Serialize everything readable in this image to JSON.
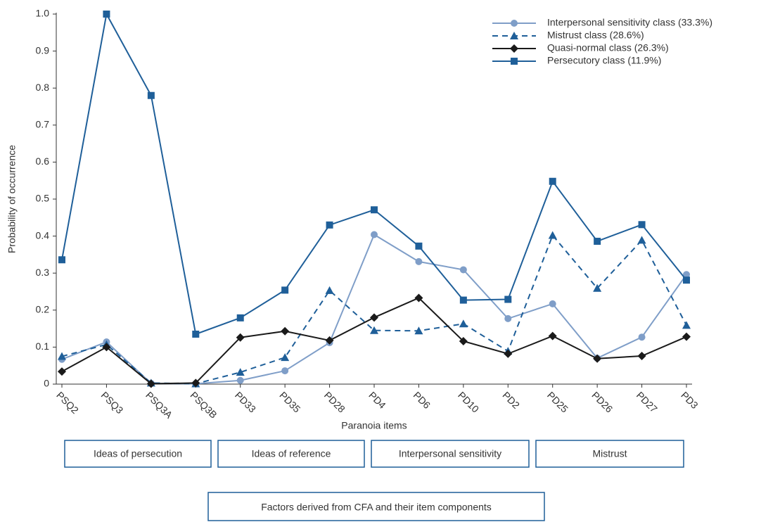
{
  "chart_data": {
    "type": "line",
    "y_label": "Probability of occurrence",
    "x_label": "Paranoia items",
    "categories": [
      "PSQ2",
      "PSQ3",
      "PSQ3A",
      "PSQ3B",
      "PD33",
      "PD35",
      "PD28",
      "PD4",
      "PD6",
      "PD10",
      "PD2",
      "PD25",
      "PD26",
      "PD27",
      "PD3"
    ],
    "ylim": [
      0,
      1
    ],
    "yticks": [
      0,
      0.1,
      0.2,
      0.3,
      0.4,
      0.5,
      0.6,
      0.7,
      0.8,
      0.9,
      {
        "value": 1,
        "label": "1.0"
      }
    ],
    "legend": "upper right",
    "series": [
      {
        "name": "Interpersonal sensitivity class (33.3%)",
        "color": "#7f9ec8",
        "marker": "circle",
        "dashed": false,
        "values": [
          0.067,
          0.114,
          0.002,
          0.001,
          0.01,
          0.036,
          0.112,
          0.404,
          0.331,
          0.309,
          0.177,
          0.217,
          0.07,
          0.127,
          0.296
        ]
      },
      {
        "name": "Mistrust class (28.6%)",
        "color": "#1f5f99",
        "marker": "triangle",
        "dashed": true,
        "values": [
          0.075,
          0.107,
          0.003,
          0.001,
          0.032,
          0.072,
          0.253,
          0.145,
          0.144,
          0.163,
          0.089,
          0.402,
          0.259,
          0.389,
          0.159
        ]
      },
      {
        "name": "Quasi-normal class (26.3%)",
        "color": "#1a1a1a",
        "marker": "diamond",
        "dashed": false,
        "values": [
          0.034,
          0.1,
          0.001,
          0.003,
          0.126,
          0.143,
          0.118,
          0.18,
          0.233,
          0.116,
          0.082,
          0.13,
          0.069,
          0.076,
          0.128
        ]
      },
      {
        "name": "Persecutory class (11.9%)",
        "color": "#1f5f99",
        "marker": "square",
        "dashed": false,
        "values": [
          0.336,
          1.0,
          0.78,
          0.135,
          0.179,
          0.254,
          0.43,
          0.471,
          0.373,
          0.227,
          0.229,
          0.548,
          0.386,
          0.431,
          0.281
        ]
      }
    ],
    "groups": [
      "Ideas of persecution",
      "Ideas of reference",
      "Interpersonal sensitivity",
      "Mistrust"
    ],
    "groups_caption": "Factors derived from CFA and their item components"
  }
}
